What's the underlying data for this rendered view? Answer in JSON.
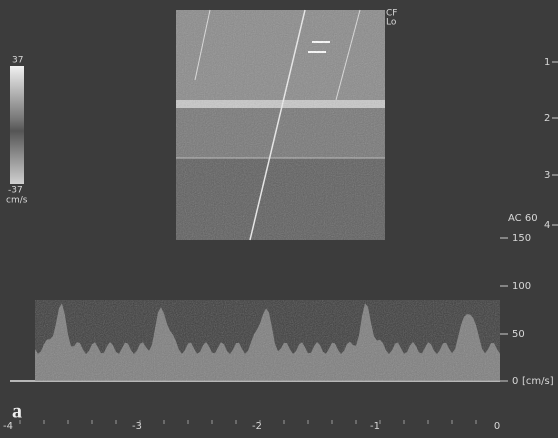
{
  "color_bar": {
    "max": "37",
    "min": "-37",
    "unit": "cm/s"
  },
  "image_label": {
    "line1": "CF",
    "line2": "Lo"
  },
  "depth_scale": [
    "1",
    "2",
    "3",
    "4"
  ],
  "angle_label": "AC 60",
  "velocity_scale": {
    "ticks": [
      "150",
      "100",
      "50",
      "0"
    ],
    "unit": "[cm/s]"
  },
  "time_axis": [
    "-4",
    "-3",
    "-2",
    "-1",
    "0"
  ],
  "panel_label": "a"
}
